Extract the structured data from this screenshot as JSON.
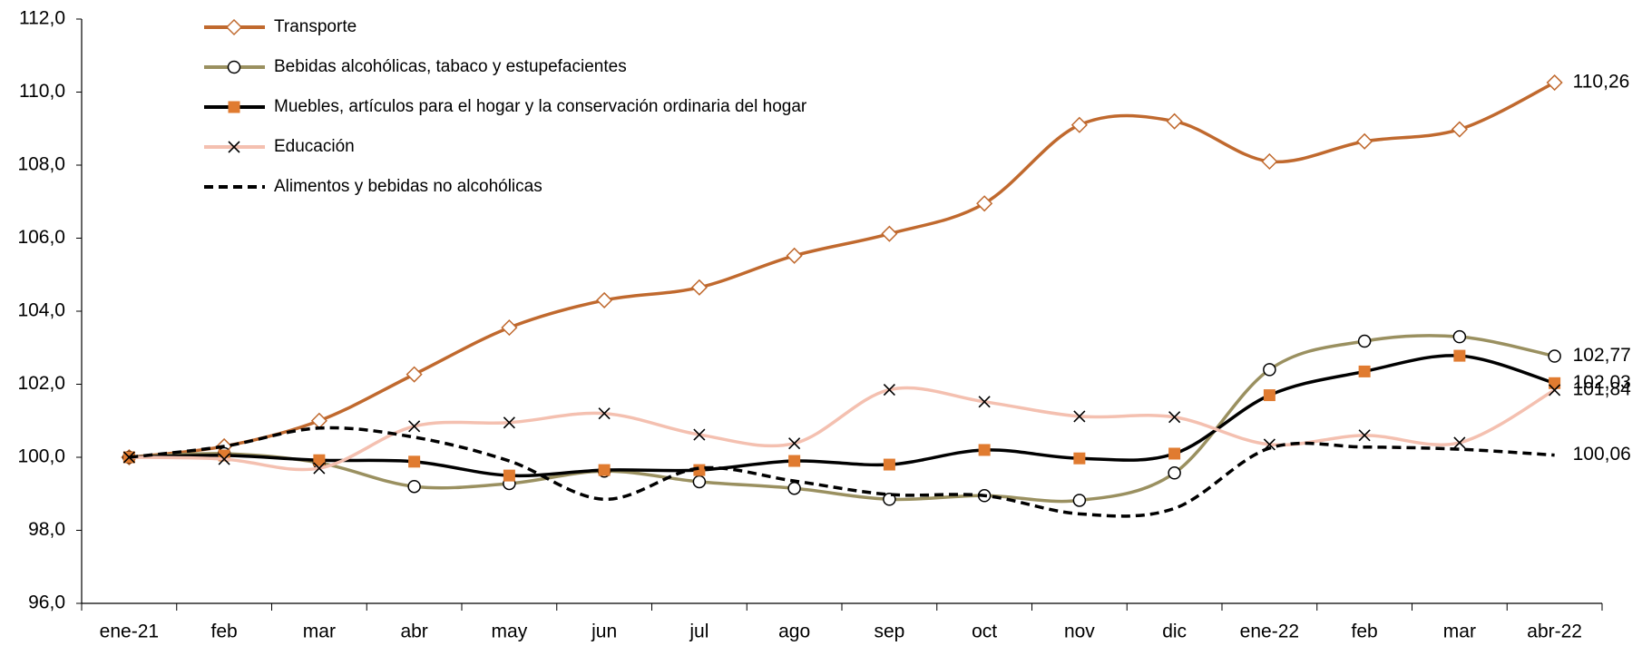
{
  "chart_data": {
    "type": "line",
    "categories": [
      "ene-21",
      "feb",
      "mar",
      "abr",
      "may",
      "jun",
      "jul",
      "ago",
      "sep",
      "oct",
      "nov",
      "dic",
      "ene-22",
      "feb",
      "mar",
      "abr-22"
    ],
    "ylim": [
      96,
      112
    ],
    "yticks": [
      {
        "value": 96,
        "label": "96,0"
      },
      {
        "value": 98,
        "label": "98,0"
      },
      {
        "value": 100,
        "label": "100,0"
      },
      {
        "value": 102,
        "label": "102,0"
      },
      {
        "value": 104,
        "label": "104,0"
      },
      {
        "value": 106,
        "label": "106,0"
      },
      {
        "value": 108,
        "label": "108,0"
      },
      {
        "value": 110,
        "label": "110,0"
      },
      {
        "value": 112,
        "label": "112,0"
      }
    ],
    "grid": false,
    "legend": "top-left",
    "series": [
      {
        "name": "Transporte",
        "color": "#c0692e",
        "marker": "diamond",
        "marker_color": "#c0692e",
        "label_color": "#000000",
        "values": [
          100,
          100.3,
          101.0,
          102.27,
          103.55,
          104.3,
          104.65,
          105.52,
          106.12,
          106.95,
          109.1,
          109.2,
          108.1,
          108.65,
          108.98,
          110.26
        ],
        "value_labels": [
          null,
          null,
          null,
          null,
          null,
          null,
          null,
          null,
          null,
          null,
          null,
          null,
          null,
          null,
          null,
          "110,26"
        ]
      },
      {
        "name": "Bebidas alcohólicas, tabaco y estupefacientes",
        "color": "#9a9060",
        "marker": "circle",
        "marker_color": "#000000",
        "label_color": "#8a8a10",
        "values": [
          100,
          100.1,
          99.85,
          99.2,
          99.28,
          99.62,
          99.33,
          99.15,
          98.85,
          98.95,
          98.82,
          99.57,
          102.4,
          103.18,
          103.3,
          102.77
        ],
        "value_labels": [
          null,
          null,
          null,
          null,
          null,
          null,
          null,
          null,
          null,
          null,
          null,
          null,
          null,
          null,
          null,
          "102,77"
        ]
      },
      {
        "name": "Muebles, artículos para el hogar y la conservación ordinaria del hogar",
        "color": "#000000",
        "marker": "square",
        "marker_color": "#e07b30",
        "label_color": "#000000",
        "values": [
          100,
          100.05,
          99.92,
          99.88,
          99.5,
          99.65,
          99.65,
          99.9,
          99.8,
          100.2,
          99.97,
          100.1,
          101.7,
          102.35,
          102.78,
          102.03
        ],
        "value_labels": [
          null,
          null,
          null,
          null,
          null,
          null,
          null,
          null,
          null,
          null,
          null,
          null,
          null,
          null,
          null,
          "102,03"
        ]
      },
      {
        "name": "Educación",
        "color": "#f4c0b0",
        "marker": "x",
        "marker_color": "#000000",
        "label_color": "#000000",
        "values": [
          100,
          99.95,
          99.7,
          100.85,
          100.95,
          101.2,
          100.62,
          100.38,
          101.85,
          101.52,
          101.12,
          101.1,
          100.35,
          100.6,
          100.4,
          101.84
        ],
        "value_labels": [
          null,
          null,
          null,
          null,
          null,
          null,
          null,
          null,
          null,
          null,
          null,
          null,
          null,
          null,
          null,
          "101,84"
        ]
      },
      {
        "name": "Alimentos y bebidas no alcohólicas",
        "color": "#000000",
        "marker": "none",
        "dashed": true,
        "label_color": "#000000",
        "values": [
          100,
          100.3,
          100.8,
          100.55,
          99.9,
          98.85,
          99.7,
          99.35,
          98.98,
          98.95,
          98.45,
          98.6,
          100.25,
          100.28,
          100.22,
          100.06
        ],
        "value_labels": [
          null,
          null,
          null,
          null,
          null,
          null,
          null,
          null,
          null,
          null,
          null,
          null,
          null,
          null,
          null,
          "100,06"
        ]
      }
    ]
  }
}
